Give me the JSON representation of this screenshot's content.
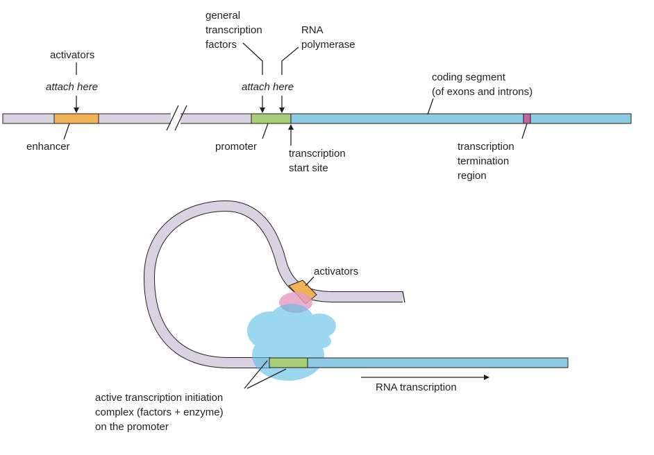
{
  "colors": {
    "dna": "#d8d2e2",
    "enhancer": "#f0b254",
    "promoter": "#a8cf78",
    "coding": "#8ecae3",
    "termination": "#c5659c",
    "activator_protein": "#e69bc0",
    "polymerase_complex": "#59bde5",
    "outline": "#231f20"
  },
  "top": {
    "activators_label": "activators",
    "attach_here_left": "attach here",
    "general_tf_line1": "general",
    "general_tf_line2": "transcription",
    "general_tf_line3": "factors",
    "rna_pol_line1": "RNA",
    "rna_pol_line2": "polymerase",
    "attach_here_right": "attach here",
    "coding_line1": "coding segment",
    "coding_line2": "(of exons and introns)",
    "enhancer_label": "enhancer",
    "promoter_label": "promoter",
    "start_line1": "transcription",
    "start_line2": "start site",
    "term_line1": "transcription",
    "term_line2": "termination",
    "term_line3": "region"
  },
  "bottom": {
    "activators_label": "activators",
    "rna_transcription_label": "RNA transcription",
    "complex_line1": "active transcription initiation",
    "complex_line2": "complex (factors + enzyme)",
    "complex_line3": "on the promoter"
  }
}
